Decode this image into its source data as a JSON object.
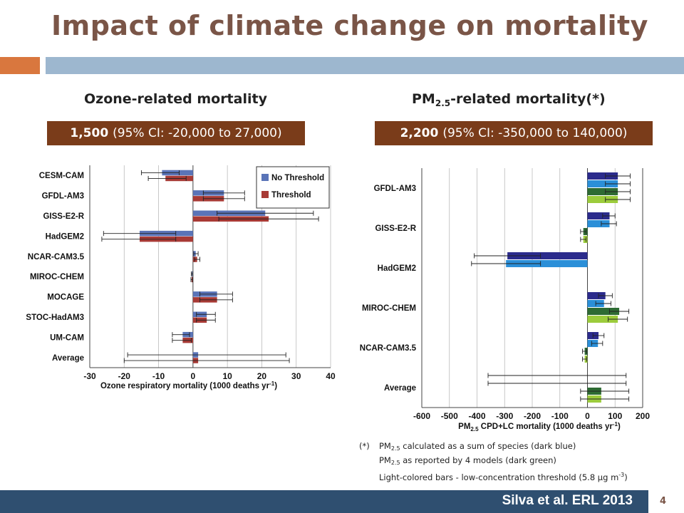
{
  "slide": {
    "title": "Impact of climate change on mortality",
    "left_heading": "Ozone-related mortality",
    "right_heading_main": "PM",
    "right_heading_sub": "2.5",
    "right_heading_rest": "-related mortality(*)",
    "left_ci_value": "1,500",
    "left_ci_text": "(95% CI: -20,000 to 27,000)",
    "right_ci_value": "2,200",
    "right_ci_text": "(95% CI: -350,000 to 140,000)",
    "footnote_mark": "(*)",
    "footnote_line1_a": "PM",
    "footnote_line1_sub": "2.5",
    "footnote_line1_b": " calculated as a sum of species (dark blue)",
    "footnote_line2_a": "PM",
    "footnote_line2_sub": "2.5",
    "footnote_line2_b": " as reported by 4 models (dark green)",
    "footnote_line3_a": "Light-colored bars - low-concentration threshold (5.8 μg m",
    "footnote_line3_sup": "-3",
    "footnote_line3_b": ")",
    "citation": "Silva et al. ERL 2013",
    "page_number": "4"
  },
  "colors": {
    "title": "#7a5547",
    "ci_box": "#7a3c1a",
    "no_threshold": "#5a74b8",
    "threshold": "#a83a35",
    "dark_blue": "#2b2b8c",
    "light_blue": "#2b8fd8",
    "dark_green": "#2e6b33",
    "light_green": "#9ccc3c",
    "footer": "#2f4f70"
  },
  "chart_data": [
    {
      "type": "bar",
      "orientation": "horizontal",
      "xlabel": "Ozone respiratory mortality (1000 deaths yr",
      "xlabel_sup": "-1",
      "xlabel_end": ")",
      "xlim": [
        -30,
        40
      ],
      "xticks": [
        -30,
        -20,
        -10,
        0,
        10,
        20,
        30,
        40
      ],
      "grid": true,
      "legend_position": "top-right",
      "categories": [
        "CESM-CAM",
        "GFDL-AM3",
        "GISS-E2-R",
        "HadGEM2",
        "NCAR-CAM3.5",
        "MIROC-CHEM",
        "MOCAGE",
        "STOC-HadAM3",
        "UM-CAM",
        "Average"
      ],
      "series": [
        {
          "name": "No Threshold",
          "values": [
            -9,
            9,
            21,
            -15.5,
            0.8,
            -0.3,
            7,
            4,
            -3,
            1.5
          ],
          "err_low": [
            -15,
            3,
            7,
            -26,
            0.2,
            -0.5,
            2,
            1,
            -6,
            -19
          ],
          "err_high": [
            -4,
            15,
            35,
            -5,
            1.5,
            -0.1,
            11.5,
            6.5,
            -1,
            27
          ]
        },
        {
          "name": "Threshold",
          "values": [
            -8,
            9,
            22,
            -15.5,
            1.2,
            -0.4,
            7,
            4,
            -3,
            1.5
          ],
          "err_low": [
            -13,
            3,
            7.5,
            -26.5,
            0.4,
            -0.6,
            2,
            1,
            -6,
            -20
          ],
          "err_high": [
            -2,
            15,
            36.5,
            -5,
            2,
            -0.1,
            11.5,
            6.5,
            -0.5,
            28
          ]
        }
      ]
    },
    {
      "type": "bar",
      "orientation": "horizontal",
      "xlabel_a": "PM",
      "xlabel_sub": "2.5",
      "xlabel_b": " CPD+LC mortality (1000 deaths yr",
      "xlabel_sup": "-1",
      "xlabel_end": ")",
      "xlim": [
        -600,
        200
      ],
      "xticks": [
        -600,
        -500,
        -400,
        -300,
        -200,
        -100,
        0,
        100,
        200
      ],
      "grid": true,
      "categories": [
        "GFDL-AM3",
        "GISS-E2-R",
        "HadGEM2",
        "MIROC-CHEM",
        "NCAR-CAM3.5",
        "Average"
      ],
      "series": [
        {
          "id": "dark_blue",
          "values": [
            110,
            80,
            -290,
            65,
            40,
            null
          ],
          "err_low": [
            65,
            55,
            -410,
            40,
            20,
            -360
          ],
          "err_high": [
            155,
            100,
            -170,
            90,
            60,
            140
          ]
        },
        {
          "id": "light_blue",
          "values": [
            110,
            80,
            -295,
            60,
            38,
            null
          ],
          "err_low": [
            65,
            50,
            -420,
            30,
            15,
            -360
          ],
          "err_high": [
            155,
            105,
            -170,
            85,
            55,
            140
          ]
        },
        {
          "id": "dark_green",
          "values": [
            110,
            -15,
            null,
            115,
            -10,
            50
          ],
          "err_low": [
            65,
            -25,
            null,
            80,
            -18,
            -25
          ],
          "err_high": [
            155,
            -5,
            null,
            150,
            -3,
            150
          ]
        },
        {
          "id": "light_green",
          "values": [
            110,
            -15,
            null,
            110,
            -10,
            50
          ],
          "err_low": [
            65,
            -25,
            null,
            75,
            -18,
            -25
          ],
          "err_high": [
            155,
            -5,
            null,
            145,
            -3,
            150
          ]
        }
      ]
    }
  ]
}
